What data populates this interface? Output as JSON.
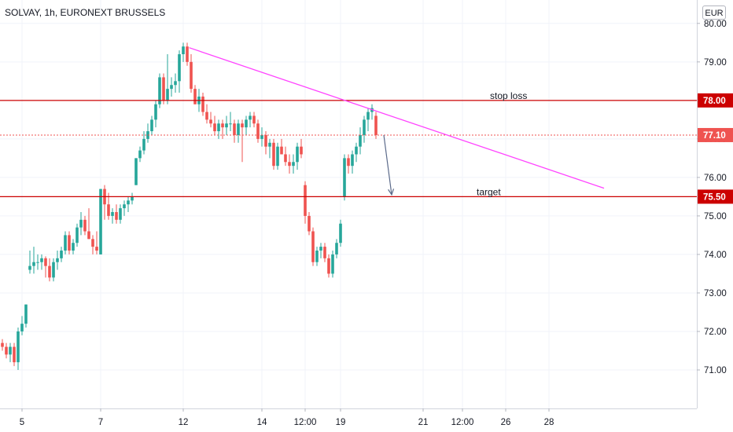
{
  "header": {
    "title": "SOLVAY, 1h, EURONEXT BRUSSELS",
    "currency": "EUR"
  },
  "colors": {
    "up": "#26a69a",
    "down": "#ef5350",
    "level_line": "#cc0000",
    "trend_line": "#ff44ff",
    "arrow": "#5b6a8a",
    "grid": "#f0f3fa",
    "last_price": "#ef5350"
  },
  "chart_data": {
    "type": "candlestick",
    "ylim": [
      70.0,
      80.2
    ],
    "y_ticks": [
      71,
      72,
      73,
      74,
      75,
      76,
      77,
      78,
      79,
      80
    ],
    "y_tick_labels": [
      "71.00",
      "72.00",
      "73.00",
      "74.00",
      "75.00",
      "76.00",
      "77.00",
      "78.00",
      "79.00",
      "80.00"
    ],
    "x_ticks": [
      {
        "label": "5",
        "pos": 5
      },
      {
        "label": "7",
        "pos": 25
      },
      {
        "label": "12",
        "pos": 46
      },
      {
        "label": "14",
        "pos": 66
      },
      {
        "label": "12:00",
        "pos": 77
      },
      {
        "label": "19",
        "pos": 86
      },
      {
        "label": "21",
        "pos": 107
      },
      {
        "label": "12:00",
        "pos": 117
      },
      {
        "label": "26",
        "pos": 128
      },
      {
        "label": "28",
        "pos": 139
      }
    ],
    "candles": [
      [
        71.7,
        71.8,
        71.5,
        71.6
      ],
      [
        71.6,
        71.7,
        71.3,
        71.4
      ],
      [
        71.4,
        71.7,
        71.2,
        71.6
      ],
      [
        71.6,
        71.7,
        71.1,
        71.2
      ],
      [
        71.2,
        72.1,
        71.0,
        72.0
      ],
      [
        72.0,
        72.4,
        71.9,
        72.2
      ],
      [
        72.2,
        72.7,
        72.1,
        72.7
      ],
      [
        73.6,
        74.1,
        73.5,
        73.7
      ],
      [
        73.7,
        74.2,
        73.5,
        73.8
      ],
      [
        73.8,
        74.0,
        73.6,
        73.8
      ],
      [
        73.8,
        74.0,
        73.6,
        73.9
      ],
      [
        73.9,
        73.95,
        73.4,
        73.7
      ],
      [
        73.7,
        73.9,
        73.3,
        73.4
      ],
      [
        73.4,
        73.9,
        73.3,
        73.8
      ],
      [
        73.8,
        74.1,
        73.6,
        73.9
      ],
      [
        73.9,
        74.2,
        73.8,
        74.1
      ],
      [
        74.1,
        74.6,
        74.0,
        74.5
      ],
      [
        74.5,
        74.6,
        74.0,
        74.1
      ],
      [
        74.1,
        74.4,
        74.0,
        74.3
      ],
      [
        74.3,
        74.8,
        74.2,
        74.7
      ],
      [
        74.7,
        75.1,
        74.5,
        74.9
      ],
      [
        74.9,
        75.0,
        74.5,
        74.6
      ],
      [
        74.6,
        75.2,
        74.4,
        74.4
      ],
      [
        74.4,
        74.5,
        74.0,
        74.2
      ],
      [
        74.2,
        74.6,
        74.0,
        74.1
      ],
      [
        74.0,
        75.7,
        74.0,
        75.7
      ],
      [
        75.7,
        75.8,
        74.9,
        75.3
      ],
      [
        75.3,
        75.6,
        74.9,
        75.0
      ],
      [
        75.0,
        75.2,
        74.8,
        75.1
      ],
      [
        75.1,
        75.3,
        74.8,
        74.9
      ],
      [
        74.9,
        75.3,
        74.8,
        75.2
      ],
      [
        75.2,
        75.4,
        75.0,
        75.3
      ],
      [
        75.3,
        75.5,
        75.1,
        75.4
      ],
      [
        75.4,
        75.6,
        75.3,
        75.5
      ],
      [
        75.8,
        76.5,
        75.8,
        76.5
      ],
      [
        76.5,
        76.8,
        76.4,
        76.7
      ],
      [
        76.7,
        77.2,
        76.6,
        77.0
      ],
      [
        77.0,
        77.4,
        76.9,
        77.2
      ],
      [
        77.2,
        77.6,
        77.1,
        77.5
      ],
      [
        77.5,
        78.0,
        77.3,
        77.9
      ],
      [
        77.9,
        78.7,
        77.8,
        78.6
      ],
      [
        78.6,
        78.7,
        77.9,
        78.0
      ],
      [
        78.0,
        79.2,
        77.9,
        78.3
      ],
      [
        78.3,
        78.6,
        78.1,
        78.4
      ],
      [
        78.4,
        78.7,
        78.2,
        78.5
      ],
      [
        78.5,
        79.3,
        78.2,
        79.2
      ],
      [
        79.2,
        79.5,
        79.0,
        79.4
      ],
      [
        79.4,
        79.5,
        78.9,
        79.0
      ],
      [
        79.0,
        79.2,
        78.2,
        78.3
      ],
      [
        78.3,
        78.4,
        77.9,
        77.9
      ],
      [
        77.9,
        78.3,
        77.7,
        78.1
      ],
      [
        78.1,
        78.2,
        77.6,
        77.7
      ],
      [
        77.7,
        77.9,
        77.4,
        77.5
      ],
      [
        77.5,
        77.7,
        77.3,
        77.4
      ],
      [
        77.4,
        77.6,
        77.1,
        77.2
      ],
      [
        77.2,
        77.5,
        77.0,
        77.4
      ],
      [
        77.4,
        77.5,
        77.0,
        77.3
      ],
      [
        77.3,
        77.6,
        77.1,
        77.4
      ],
      [
        77.4,
        77.7,
        77.2,
        77.4
      ],
      [
        77.4,
        77.5,
        76.9,
        77.1
      ],
      [
        77.1,
        77.5,
        76.9,
        77.4
      ],
      [
        77.4,
        77.5,
        76.4,
        77.3
      ],
      [
        77.3,
        77.6,
        77.1,
        77.5
      ],
      [
        77.5,
        77.7,
        77.3,
        77.6
      ],
      [
        77.6,
        77.7,
        77.3,
        77.4
      ],
      [
        77.4,
        77.5,
        76.9,
        77.0
      ],
      [
        77.0,
        77.3,
        76.8,
        77.1
      ],
      [
        77.1,
        77.2,
        76.6,
        76.8
      ],
      [
        76.8,
        77.0,
        76.5,
        76.9
      ],
      [
        76.9,
        77.0,
        76.2,
        76.3
      ],
      [
        76.3,
        76.9,
        76.2,
        76.8
      ],
      [
        76.8,
        77.0,
        76.6,
        76.6
      ],
      [
        76.6,
        76.8,
        76.3,
        76.4
      ],
      [
        76.4,
        76.6,
        76.1,
        76.3
      ],
      [
        76.3,
        76.6,
        76.1,
        76.4
      ],
      [
        76.4,
        76.9,
        76.2,
        76.8
      ],
      [
        76.8,
        77.0,
        76.5,
        76.6
      ],
      [
        75.8,
        75.9,
        74.8,
        75.0
      ],
      [
        75.0,
        75.1,
        74.5,
        74.6
      ],
      [
        74.6,
        74.7,
        73.7,
        73.8
      ],
      [
        73.8,
        74.2,
        73.7,
        74.1
      ],
      [
        74.1,
        74.3,
        73.9,
        74.2
      ],
      [
        74.2,
        74.3,
        73.8,
        73.9
      ],
      [
        73.9,
        74.0,
        73.4,
        73.5
      ],
      [
        73.5,
        74.1,
        73.4,
        74.0
      ],
      [
        74.0,
        74.4,
        73.9,
        74.3
      ],
      [
        74.3,
        74.9,
        74.2,
        74.8
      ],
      [
        75.5,
        76.6,
        75.4,
        76.5
      ],
      [
        76.5,
        76.6,
        76.1,
        76.3
      ],
      [
        76.3,
        76.7,
        76.1,
        76.6
      ],
      [
        76.6,
        76.9,
        76.4,
        76.8
      ],
      [
        76.8,
        77.3,
        76.6,
        77.1
      ],
      [
        77.1,
        77.6,
        76.9,
        77.5
      ],
      [
        77.5,
        77.8,
        77.2,
        77.7
      ],
      [
        77.7,
        77.9,
        77.5,
        77.8
      ],
      [
        77.6,
        77.7,
        77.0,
        77.1
      ]
    ],
    "levels": [
      {
        "value": 78.0,
        "label": "stop loss",
        "tag": "78.00"
      },
      {
        "value": 75.5,
        "label": "target",
        "tag": "75.50"
      }
    ],
    "last_price": {
      "value": 77.1,
      "tag": "77.10"
    },
    "trend_line": {
      "start": {
        "bar": 47.5,
        "price": 79.37
      },
      "end": {
        "bar": 153,
        "price": 75.72
      }
    },
    "arrow": {
      "start": {
        "bar": 97,
        "price": 77.1
      },
      "end": {
        "bar": 99,
        "price": 75.55
      }
    }
  }
}
